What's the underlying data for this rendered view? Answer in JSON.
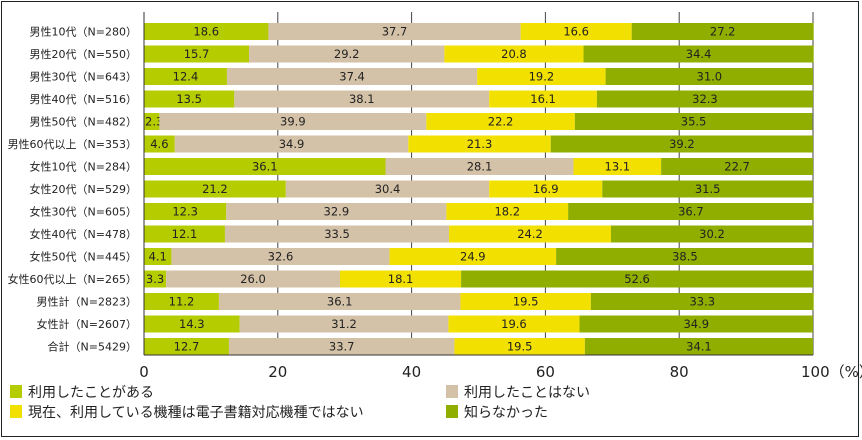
{
  "chart_data": {
    "type": "bar",
    "orientation": "horizontal",
    "stacked": true,
    "title": "",
    "xlabel": "",
    "ylabel": "",
    "xlim": [
      0,
      100
    ],
    "x_ticks": [
      "0",
      "20",
      "40",
      "60",
      "80",
      "100（%）"
    ],
    "grid": false,
    "legend_position": "bottom",
    "categories": [
      "男性10代（N=280）",
      "男性20代（N=550）",
      "男性30代（N=643）",
      "男性40代（N=516）",
      "男性50代（N=482）",
      "男性60代以上（N=353）",
      "女性10代（N=284）",
      "女性20代（N=529）",
      "女性30代（N=605）",
      "女性40代（N=478）",
      "女性50代（N=445）",
      "女性60代以上（N=265）",
      "男性計（N=2823）",
      "女性計（N=2607）",
      "合計（N=5429）"
    ],
    "series": [
      {
        "name": "利用したことがある",
        "color": "#b5cc00",
        "values": [
          18.6,
          15.7,
          12.4,
          13.5,
          2.3,
          4.6,
          36.1,
          21.2,
          12.3,
          12.1,
          4.1,
          3.3,
          11.2,
          14.3,
          12.7
        ]
      },
      {
        "name": "利用したことはない",
        "color": "#d4c2a8",
        "values": [
          37.7,
          29.2,
          37.4,
          38.1,
          39.9,
          34.9,
          28.1,
          30.4,
          32.9,
          33.5,
          32.6,
          26.0,
          36.1,
          31.2,
          33.7
        ]
      },
      {
        "name": "現在、利用している機種は電子書籍対応機種ではない",
        "color": "#f2e000",
        "values": [
          16.6,
          20.8,
          19.2,
          16.1,
          22.2,
          21.3,
          13.1,
          16.9,
          18.2,
          24.2,
          24.9,
          18.1,
          19.5,
          19.6,
          19.5
        ]
      },
      {
        "name": "知らなかった",
        "color": "#8fae00",
        "values": [
          27.2,
          34.4,
          31.0,
          32.3,
          35.5,
          39.2,
          22.7,
          31.5,
          36.7,
          30.2,
          38.5,
          52.6,
          33.3,
          34.9,
          34.1
        ]
      }
    ],
    "legend_order": [
      0,
      1,
      2,
      3
    ]
  }
}
